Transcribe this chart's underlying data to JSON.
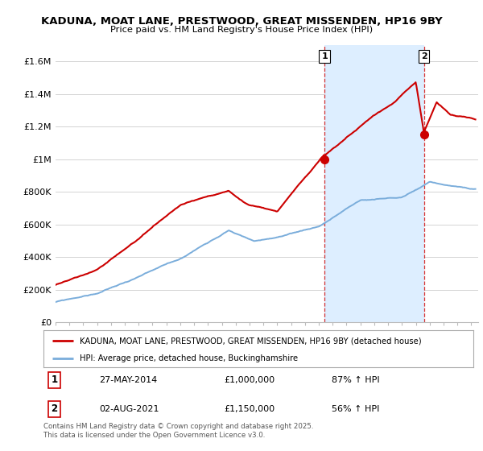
{
  "title": "KADUNA, MOAT LANE, PRESTWOOD, GREAT MISSENDEN, HP16 9BY",
  "subtitle": "Price paid vs. HM Land Registry's House Price Index (HPI)",
  "ylabel_ticks": [
    "£0",
    "£200K",
    "£400K",
    "£600K",
    "£800K",
    "£1M",
    "£1.2M",
    "£1.4M",
    "£1.6M"
  ],
  "ytick_values": [
    0,
    200000,
    400000,
    600000,
    800000,
    1000000,
    1200000,
    1400000,
    1600000
  ],
  "ylim": [
    0,
    1700000
  ],
  "xlim_start": 1995,
  "xlim_end": 2025.5,
  "line1_label": "KADUNA, MOAT LANE, PRESTWOOD, GREAT MISSENDEN, HP16 9BY (detached house)",
  "line1_color": "#cc0000",
  "line2_label": "HPI: Average price, detached house, Buckinghamshire",
  "line2_color": "#7aaddb",
  "shade_color": "#ddeeff",
  "marker1_date": 2014.41,
  "marker1_price": 1000000,
  "marker2_date": 2021.58,
  "marker2_price": 1150000,
  "vline1_date": 2014.41,
  "vline2_date": 2021.58,
  "table_rows": [
    [
      "1",
      "27-MAY-2014",
      "£1,000,000",
      "87% ↑ HPI"
    ],
    [
      "2",
      "02-AUG-2021",
      "£1,150,000",
      "56% ↑ HPI"
    ]
  ],
  "footer": "Contains HM Land Registry data © Crown copyright and database right 2025.\nThis data is licensed under the Open Government Licence v3.0.",
  "background_color": "#ffffff",
  "grid_color": "#cccccc"
}
